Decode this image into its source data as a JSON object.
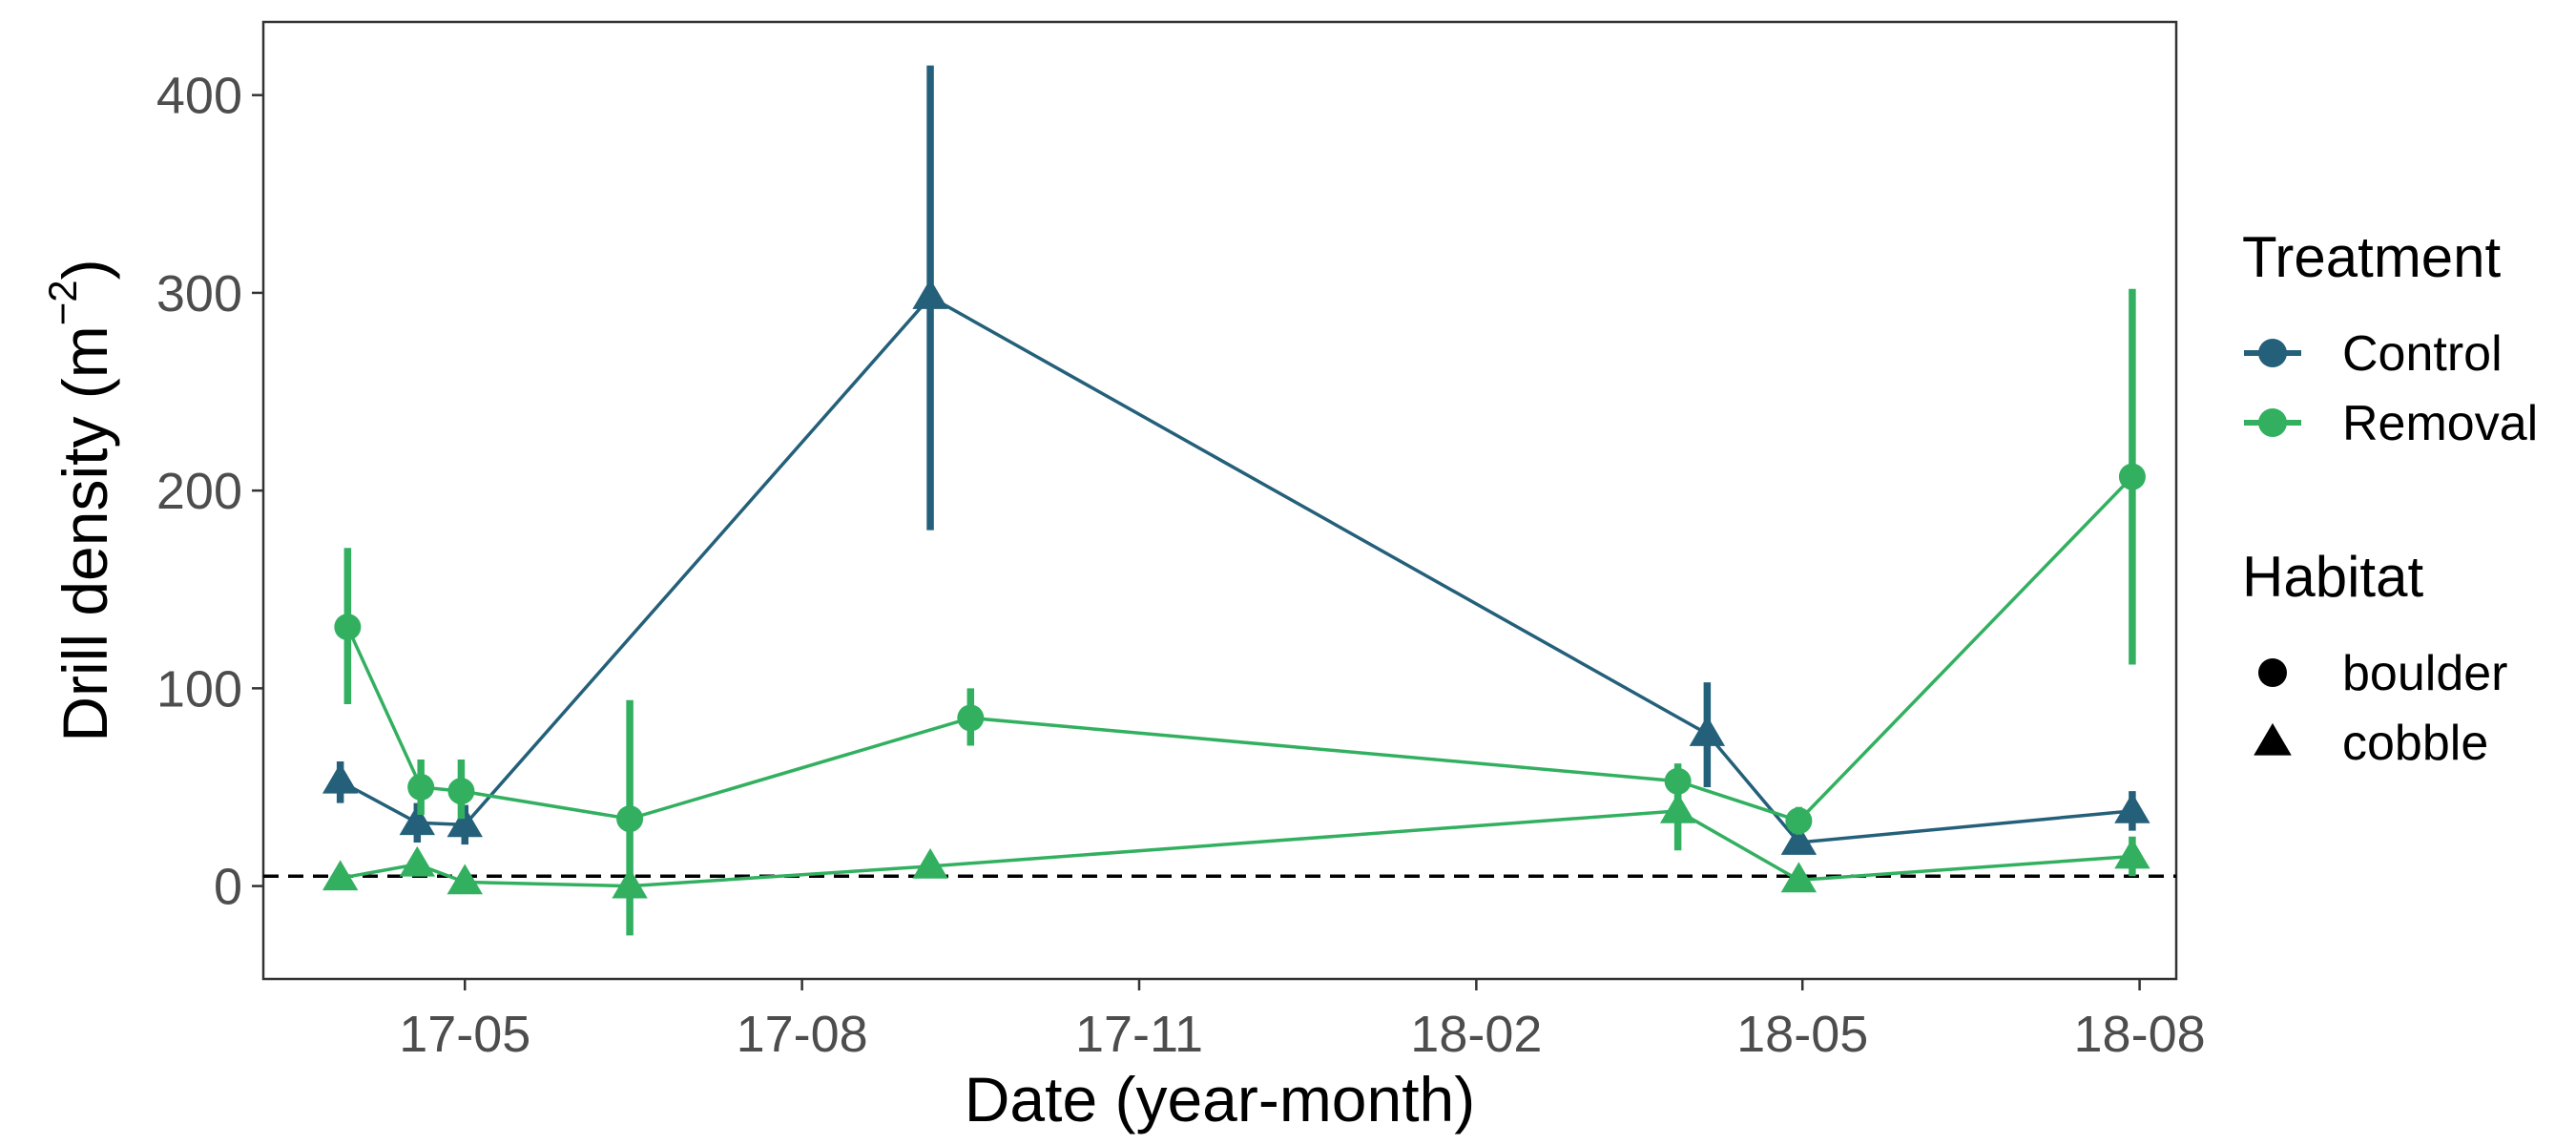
{
  "chart_data": {
    "type": "line",
    "xlabel": "Date (year-month)",
    "ylabel": "Drill density (m",
    "ylabel_sup": "−2",
    "ylabel_close": ")",
    "x_axis": {
      "type": "date",
      "range": [
        "2017-03-07",
        "2018-08-11"
      ],
      "ticks": [
        {
          "value": "2017-05-01",
          "label": "17-05"
        },
        {
          "value": "2017-08-01",
          "label": "17-08"
        },
        {
          "value": "2017-11-01",
          "label": "17-11"
        },
        {
          "value": "2018-02-01",
          "label": "18-02"
        },
        {
          "value": "2018-05-01",
          "label": "18-05"
        },
        {
          "value": "2018-08-01",
          "label": "18-08"
        }
      ]
    },
    "y_axis": {
      "range": [
        -47,
        437
      ],
      "ticks": [
        {
          "value": 0,
          "label": "0"
        },
        {
          "value": 100,
          "label": "100"
        },
        {
          "value": 200,
          "label": "200"
        },
        {
          "value": 300,
          "label": "300"
        },
        {
          "value": 400,
          "label": "400"
        }
      ]
    },
    "grid": false,
    "reference_line": {
      "y": 5,
      "style": "dashed",
      "color": "#000000"
    },
    "legend": {
      "placement": "right",
      "treatment_title": "Treatment",
      "habitat_title": "Habitat",
      "treatments": [
        {
          "name": "Control",
          "color": "#24607A"
        },
        {
          "name": "Removal",
          "color": "#32B060"
        }
      ],
      "habitats": [
        {
          "name": "boulder",
          "shape": "circle"
        },
        {
          "name": "cobble",
          "shape": "triangle"
        }
      ]
    },
    "series": [
      {
        "treatment": "Control",
        "habitat": "cobble",
        "color": "#24607A",
        "points": [
          {
            "x": "2017-03-28",
            "y": 53,
            "lo": 42,
            "hi": 63
          },
          {
            "x": "2017-04-18",
            "y": 32,
            "lo": 22,
            "hi": 42
          },
          {
            "x": "2017-05-01",
            "y": 31,
            "lo": 21,
            "hi": 41
          },
          {
            "x": "2017-09-05",
            "y": 298,
            "lo": 180,
            "hi": 415
          },
          {
            "x": "2018-04-05",
            "y": 77,
            "lo": 50,
            "hi": 103
          },
          {
            "x": "2018-04-30",
            "y": 22,
            "lo": 16,
            "hi": 28
          },
          {
            "x": "2018-07-30",
            "y": 38,
            "lo": 28,
            "hi": 48
          }
        ]
      },
      {
        "treatment": "Removal",
        "habitat": "boulder",
        "color": "#32B060",
        "points": [
          {
            "x": "2017-03-30",
            "y": 131,
            "lo": 92,
            "hi": 171
          },
          {
            "x": "2017-04-19",
            "y": 50,
            "lo": 36,
            "hi": 64
          },
          {
            "x": "2017-04-30",
            "y": 48,
            "lo": 34,
            "hi": 64
          },
          {
            "x": "2017-06-15",
            "y": 34,
            "lo": -25,
            "hi": 94
          },
          {
            "x": "2017-09-16",
            "y": 85,
            "lo": 71,
            "hi": 100
          },
          {
            "x": "2018-03-28",
            "y": 53,
            "lo": 44,
            "hi": 62
          },
          {
            "x": "2018-04-30",
            "y": 33,
            "lo": 26,
            "hi": 40
          },
          {
            "x": "2018-07-30",
            "y": 207,
            "lo": 112,
            "hi": 302
          }
        ]
      },
      {
        "treatment": "Removal",
        "habitat": "cobble",
        "color": "#32B060",
        "points": [
          {
            "x": "2017-03-28",
            "y": 4,
            "lo": 1,
            "hi": 7
          },
          {
            "x": "2017-04-18",
            "y": 11,
            "lo": 6,
            "hi": 16
          },
          {
            "x": "2017-05-01",
            "y": 2,
            "lo": 0,
            "hi": 4
          },
          {
            "x": "2017-06-15",
            "y": 0,
            "lo": -3,
            "hi": 3
          },
          {
            "x": "2017-09-05",
            "y": 10,
            "lo": 7,
            "hi": 13
          },
          {
            "x": "2018-03-28",
            "y": 38,
            "lo": 18,
            "hi": 57
          },
          {
            "x": "2018-04-30",
            "y": 3,
            "lo": 0,
            "hi": 6
          },
          {
            "x": "2018-07-30",
            "y": 15,
            "lo": 5,
            "hi": 25
          }
        ]
      }
    ]
  }
}
